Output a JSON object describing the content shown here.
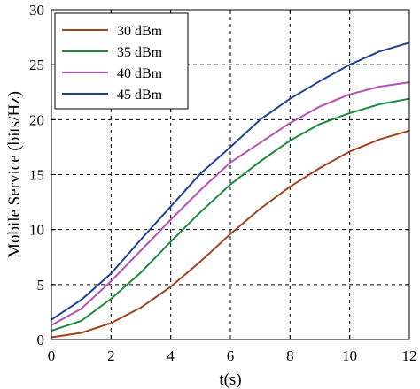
{
  "chart_data": {
    "type": "line",
    "title": "",
    "xlabel": "t(s)",
    "ylabel": "Mobile Service (bits/Hz)",
    "xlim": [
      0,
      12
    ],
    "ylim": [
      0,
      30
    ],
    "xticks": [
      0,
      2,
      4,
      6,
      8,
      10,
      12
    ],
    "yticks": [
      0,
      5,
      10,
      15,
      20,
      25,
      30
    ],
    "grid": true,
    "legend_position": "top-left",
    "x": [
      0,
      1,
      2,
      3,
      4,
      5,
      6,
      7,
      8,
      9,
      10,
      11,
      12
    ],
    "series": [
      {
        "name": "30 dBm",
        "color": "#a0421c",
        "values": [
          0.2,
          0.6,
          1.5,
          2.9,
          4.8,
          7.1,
          9.6,
          11.9,
          13.9,
          15.6,
          17.1,
          18.2,
          19.0
        ]
      },
      {
        "name": "35 dBm",
        "color": "#1a8a3c",
        "values": [
          0.8,
          1.7,
          3.7,
          6.1,
          8.9,
          11.6,
          14.1,
          16.2,
          18.1,
          19.6,
          20.6,
          21.4,
          21.9
        ]
      },
      {
        "name": "40 dBm",
        "color": "#b550b5",
        "values": [
          1.3,
          2.8,
          5.3,
          8.1,
          10.9,
          13.6,
          16.1,
          17.9,
          19.7,
          21.2,
          22.3,
          23.0,
          23.4
        ]
      },
      {
        "name": "45 dBm",
        "color": "#1f3f95",
        "values": [
          1.8,
          3.6,
          6.0,
          9.1,
          12.1,
          15.1,
          17.5,
          20.0,
          21.9,
          23.5,
          25.0,
          26.2,
          27.0
        ]
      }
    ]
  }
}
